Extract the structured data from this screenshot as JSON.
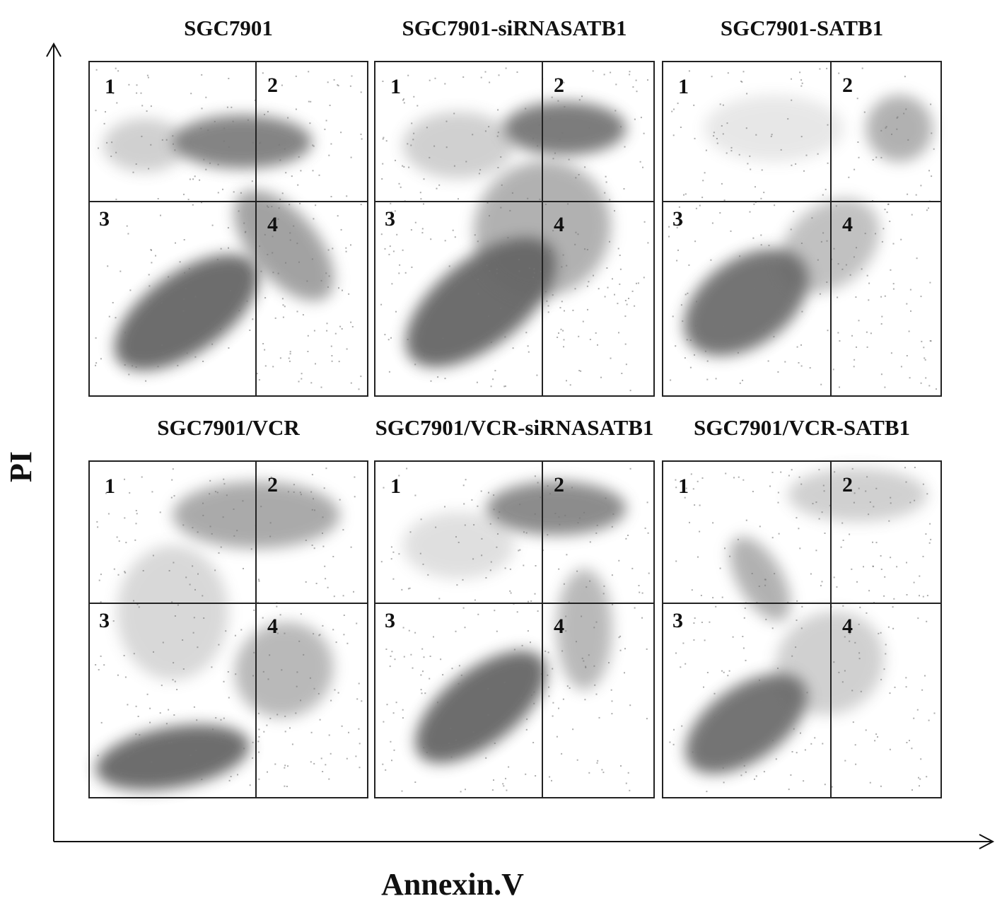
{
  "y_axis_label": "PI",
  "x_axis_label": "Annexin.V",
  "panels": [
    {
      "title": "SGC7901",
      "quadrants": [
        "1",
        "2",
        "3",
        "4"
      ]
    },
    {
      "title": "SGC7901-siRNASATB1",
      "quadrants": [
        "1",
        "2",
        "3",
        "4"
      ]
    },
    {
      "title": "SGC7901-SATB1",
      "quadrants": [
        "1",
        "2",
        "3",
        "4"
      ]
    },
    {
      "title": "SGC7901/VCR",
      "quadrants": [
        "1",
        "2",
        "3",
        "4"
      ]
    },
    {
      "title": "SGC7901/VCR-siRNASATB1",
      "quadrants": [
        "1",
        "2",
        "3",
        "4"
      ]
    },
    {
      "title": "SGC7901/VCR-SATB1",
      "quadrants": [
        "1",
        "2",
        "3",
        "4"
      ]
    }
  ]
}
